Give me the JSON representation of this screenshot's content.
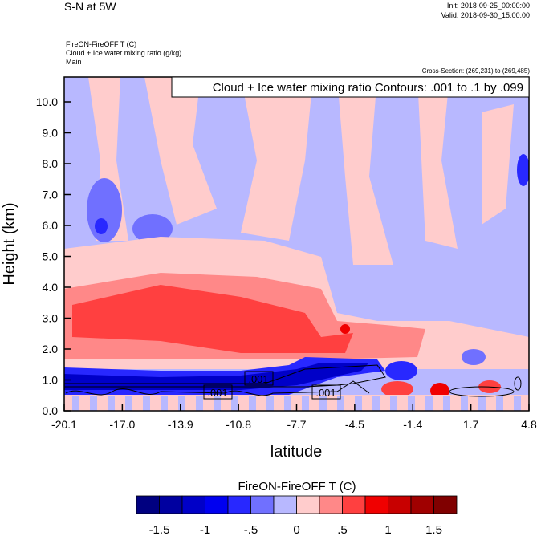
{
  "header": {
    "title": "S-N at 5W",
    "init": "Init: 2018-09-25_00:00:00",
    "valid": "Valid: 2018-09-30_15:00:00",
    "field1": "FireON-FireOFF T   (C)",
    "field2": "Cloud + Ice water mixing ratio   (g/kg)",
    "field3": "Main",
    "cross_section": "Cross-Section: (269,231) to (269,485)"
  },
  "chart_data": {
    "type": "heatmap",
    "title": "Cloud + Ice water mixing ratio Contours: .001 to .1 by .099",
    "xlabel": "latitude",
    "ylabel": "Height (km)",
    "xlim": [
      -20.1,
      4.8
    ],
    "ylim": [
      0,
      10.8
    ],
    "x_ticks": [
      "-20.1",
      "-17.0",
      "-13.9",
      "-10.8",
      "-7.7",
      "-4.5",
      "-1.4",
      "1.7",
      "4.8"
    ],
    "y_ticks": [
      "0.0",
      "1.0",
      "2.0",
      "3.0",
      "4.0",
      "5.0",
      "6.0",
      "7.0",
      "8.0",
      "9.0",
      "10.0"
    ],
    "contour_labels": [
      ".001",
      ".001",
      ".001"
    ],
    "colorbar": {
      "title": "FireON-FireOFF T  (C)",
      "labels": [
        "-1.5",
        "-1",
        "-.5",
        "0",
        ".5",
        "1",
        "1.5"
      ],
      "colors": [
        "#000080",
        "#0000a0",
        "#0000c8",
        "#0000f0",
        "#2828ff",
        "#7070ff",
        "#b8b8ff",
        "#ffcccc",
        "#ff8888",
        "#ff4040",
        "#f00000",
        "#c80000",
        "#a00000",
        "#800000"
      ]
    }
  }
}
